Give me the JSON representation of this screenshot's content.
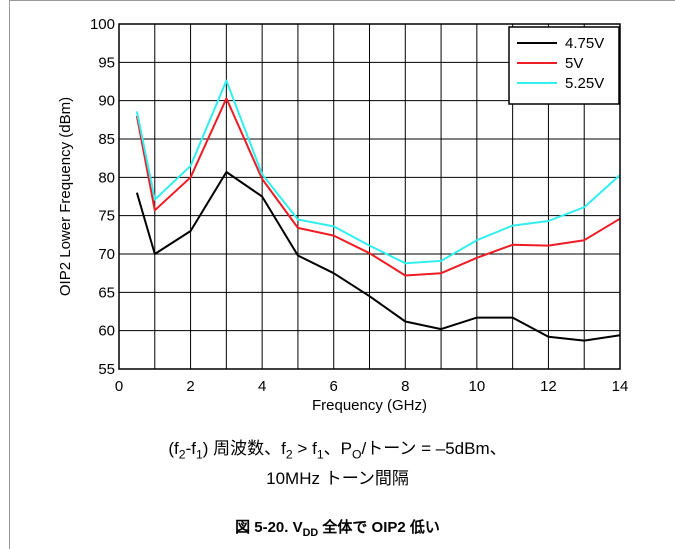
{
  "chart_data": {
    "type": "line",
    "title": "",
    "xlabel": "Frequency (GHz)",
    "ylabel": "OIP2 Lower Frequency (dBm)",
    "xlim": [
      0,
      14
    ],
    "ylim": [
      55,
      100
    ],
    "xticks": [
      "0",
      "2",
      "4",
      "6",
      "8",
      "10",
      "12",
      "14"
    ],
    "yticks": [
      "55",
      "60",
      "65",
      "70",
      "75",
      "80",
      "85",
      "90",
      "95",
      "100"
    ],
    "grid": true,
    "legend_position": "top-right",
    "x": [
      0.5,
      1,
      2,
      3,
      4,
      5,
      6,
      7,
      8,
      9,
      10,
      11,
      12,
      13,
      14
    ],
    "series": [
      {
        "name": "4.75V",
        "color": "#000000",
        "values": [
          78.0,
          70.0,
          73.0,
          80.7,
          77.5,
          69.8,
          67.5,
          64.5,
          61.2,
          60.2,
          61.7,
          61.7,
          59.2,
          58.7,
          59.4
        ]
      },
      {
        "name": "5V",
        "color": "#ee1c25",
        "values": [
          88.0,
          75.7,
          80.0,
          90.3,
          79.8,
          73.4,
          72.4,
          70.1,
          67.2,
          67.5,
          69.5,
          71.2,
          71.1,
          71.8,
          74.6
        ]
      },
      {
        "name": "5.25V",
        "color": "#33eeee",
        "values": [
          88.6,
          77.1,
          81.5,
          92.6,
          80.4,
          74.5,
          73.6,
          71.1,
          68.8,
          69.1,
          71.8,
          73.7,
          74.3,
          76.1,
          80.3
        ]
      }
    ]
  },
  "caption": {
    "line1_a": "(f",
    "line1_b": "2",
    "line1_c": "-f",
    "line1_d": "1",
    "line1_e": ") 周波数、f",
    "line1_f": "2",
    "line1_g": " > f",
    "line1_h": "1",
    "line1_i": "、P",
    "line1_j": "O",
    "line1_k": "/トーン = –5dBm、",
    "line2": "10MHz トーン間隔"
  },
  "figure_title": {
    "prefix": "図 5-20. V",
    "sub": "DD",
    "suffix": " 全体で OIP2 低い"
  }
}
